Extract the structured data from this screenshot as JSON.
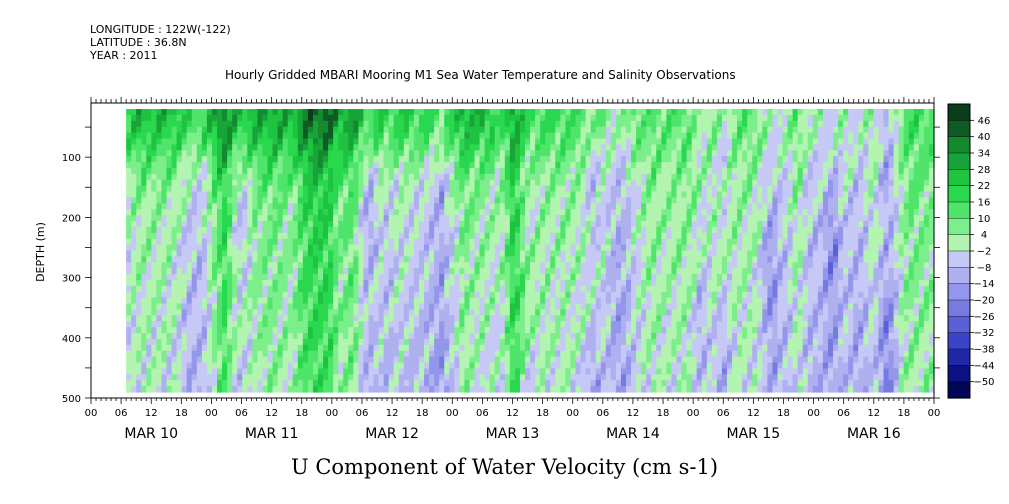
{
  "header": {
    "longitude": "LONGITUDE : 122W(-122)",
    "latitude": "LATITUDE : 36.8N",
    "year": "YEAR : 2011",
    "title": "Hourly Gridded MBARI Mooring M1 Sea Water Temperature and Salinity Observations"
  },
  "chart_data": {
    "type": "heatmap",
    "title": "Hourly Gridded MBARI Mooring M1 Sea Water Temperature and Salinity Observations",
    "xlabel": "",
    "ylabel": "DEPTH (m)",
    "bottom_label": "U Component of Water Velocity (cm s-1)",
    "x_hour_ticks": [
      "00",
      "06",
      "12",
      "18",
      "00",
      "06",
      "12",
      "18",
      "00",
      "06",
      "12",
      "18",
      "00",
      "06",
      "12",
      "18",
      "00",
      "06",
      "12",
      "18",
      "00",
      "06",
      "12",
      "18",
      "00",
      "06",
      "12",
      "18",
      "00"
    ],
    "x_day_labels": [
      "MAR 10",
      "MAR 11",
      "MAR 12",
      "MAR 13",
      "MAR 14",
      "MAR 15",
      "MAR 16"
    ],
    "x_range_hours": [
      0,
      168
    ],
    "data_start_hour": 7,
    "y_ticks": [
      100,
      200,
      300,
      400,
      500
    ],
    "y_range": [
      10,
      500
    ],
    "data_depth_range": [
      20,
      490
    ],
    "y_inverted": true,
    "colorbar": {
      "levels": [
        46,
        40,
        34,
        28,
        22,
        16,
        10,
        4,
        -2,
        -8,
        -14,
        -20,
        -26,
        -32,
        -38,
        -44,
        -50
      ],
      "colors": [
        "#0a3d1a",
        "#0f5a25",
        "#138a2e",
        "#18a438",
        "#1ec440",
        "#2ad850",
        "#4fe46a",
        "#7cee8c",
        "#b2f4b0",
        "#c6c8f6",
        "#aeb0f0",
        "#9396ea",
        "#777be0",
        "#5a60d8",
        "#3a44c8",
        "#2028a8",
        "#0c1282",
        "#020656"
      ]
    },
    "field_summary": "Positive U (green) concentrated in upper ~150 m through MAR 12; alternating vertical bands of positive and negative U below; strong negative bands near MAR 14 and MAR 16."
  }
}
